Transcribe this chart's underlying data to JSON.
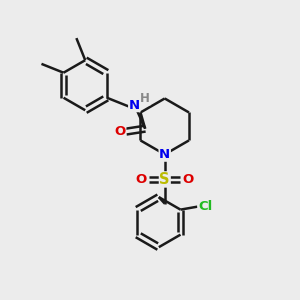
{
  "bg_color": "#ececec",
  "bond_color": "#1a1a1a",
  "N_color": "#0000ee",
  "O_color": "#dd0000",
  "S_color": "#bbbb00",
  "Cl_color": "#22bb22",
  "H_color": "#888888",
  "lw": 1.8,
  "fs": 9.5,
  "fig_size": [
    3.0,
    3.0
  ],
  "dpi": 100,
  "xlim": [
    0,
    10
  ],
  "ylim": [
    0,
    10
  ]
}
